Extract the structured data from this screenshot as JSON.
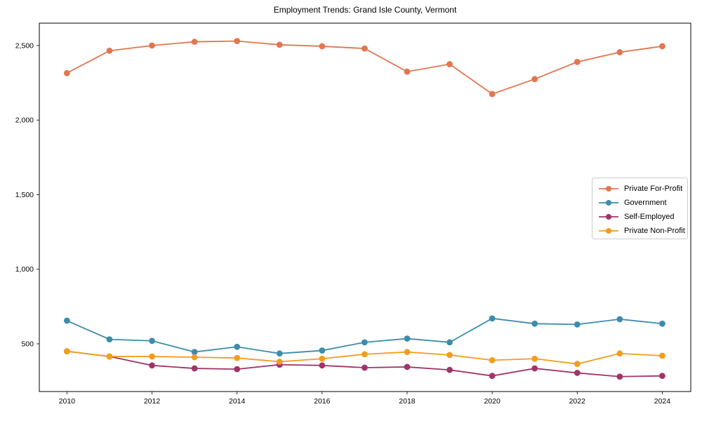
{
  "page_title": "Employment Trends: Grand Isle County, Vermont",
  "chart_data": {
    "type": "line",
    "title": "Employment Trends: Grand Isle County, Vermont",
    "xlabel": "",
    "ylabel": "",
    "grid": false,
    "legend_position": "center-right",
    "x": [
      2010,
      2011,
      2012,
      2013,
      2014,
      2015,
      2016,
      2017,
      2018,
      2019,
      2020,
      2021,
      2022,
      2023,
      2024
    ],
    "xticks": [
      2010,
      2012,
      2014,
      2016,
      2018,
      2020,
      2022,
      2024
    ],
    "xtick_labels": [
      "2010",
      "2012",
      "2014",
      "2016",
      "2018",
      "2020",
      "2022",
      "2024"
    ],
    "yticks": [
      500,
      1000,
      1500,
      2000,
      2500
    ],
    "ytick_labels": [
      "500",
      "1,000",
      "1,500",
      "2,000",
      "2,500"
    ],
    "xlim": [
      2009.35,
      2024.67
    ],
    "ylim": [
      180,
      2650
    ],
    "series": [
      {
        "name": "Private For-Profit",
        "color": "#e1764f",
        "values": [
          2315,
          2465,
          2500,
          2525,
          2530,
          2505,
          2495,
          2480,
          2325,
          2375,
          2175,
          2275,
          2390,
          2455,
          2495
        ]
      },
      {
        "name": "Government",
        "color": "#3d8caa",
        "values": [
          655,
          530,
          520,
          445,
          480,
          435,
          455,
          510,
          535,
          510,
          670,
          635,
          630,
          665,
          635
        ]
      },
      {
        "name": "Self-Employed",
        "color": "#a03568",
        "values": [
          450,
          415,
          355,
          335,
          330,
          360,
          355,
          340,
          345,
          325,
          285,
          335,
          305,
          280,
          285
        ]
      },
      {
        "name": "Private Non-Profit",
        "color": "#f19d20",
        "values": [
          450,
          415,
          415,
          410,
          405,
          380,
          400,
          430,
          445,
          425,
          390,
          400,
          365,
          435,
          420
        ]
      }
    ]
  }
}
